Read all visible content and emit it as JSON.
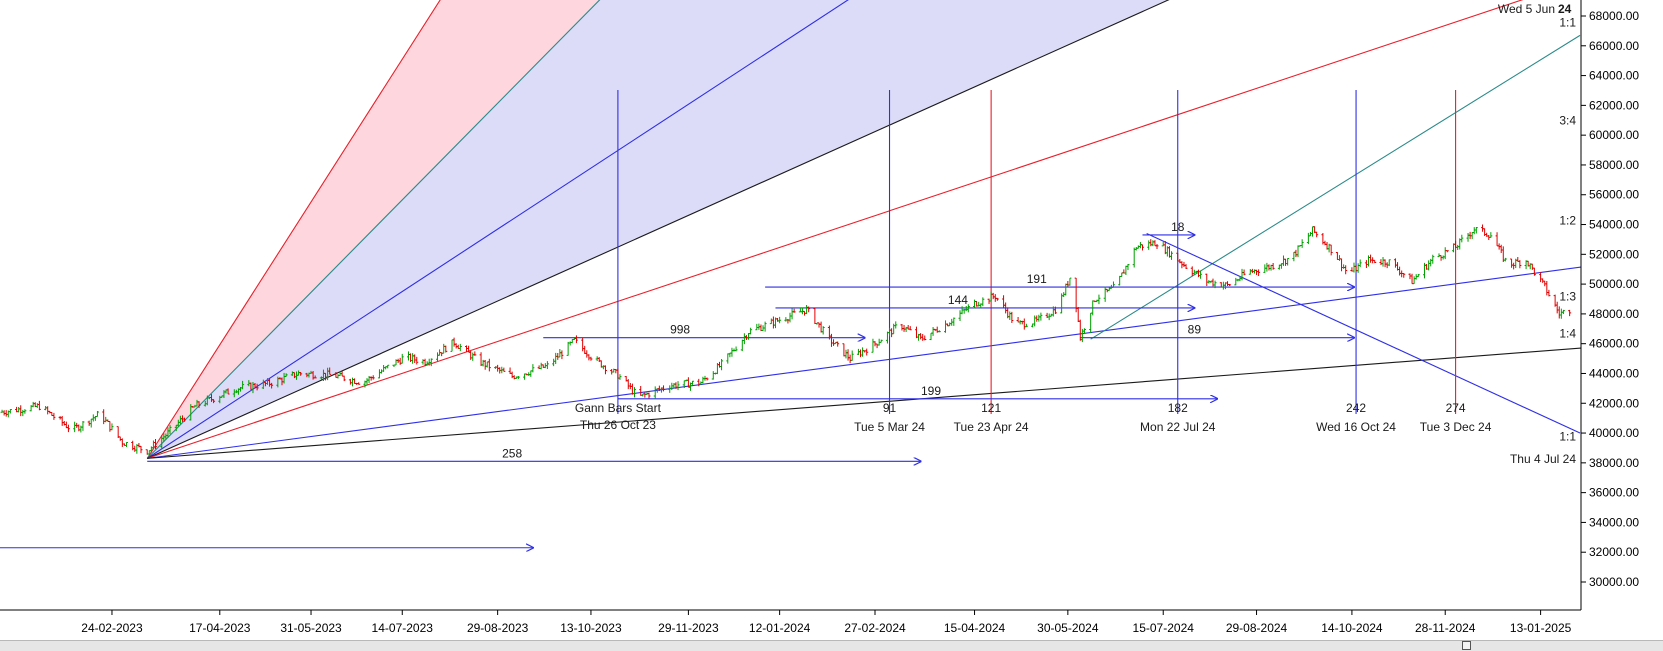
{
  "chart_data": {
    "type": "line",
    "series_style": "ohlc-price-bars",
    "y_axis_position": "right",
    "ylim": [
      29000,
      69000
    ],
    "x_range": [
      "2023-01-01",
      "2025-02-01"
    ],
    "y_ticks": [
      30000,
      32000,
      34000,
      36000,
      38000,
      40000,
      42000,
      44000,
      46000,
      48000,
      50000,
      52000,
      54000,
      56000,
      58000,
      60000,
      62000,
      64000,
      66000,
      68000
    ],
    "y_tick_labels": [
      "30000.00",
      "32000.00",
      "34000.00",
      "36000.00",
      "38000.00",
      "40000.00",
      "42000.00",
      "44000.00",
      "46000.00",
      "48000.00",
      "50000.00",
      "52000.00",
      "54000.00",
      "56000.00",
      "58000.00",
      "60000.00",
      "62000.00",
      "64000.00",
      "66000.00",
      "68000.00"
    ],
    "x_ticks": [
      "2023-02-24",
      "2023-04-17",
      "2023-05-31",
      "2023-07-14",
      "2023-08-29",
      "2023-10-13",
      "2023-11-29",
      "2024-01-12",
      "2024-02-27",
      "2024-04-15",
      "2024-05-30",
      "2024-07-15",
      "2024-08-29",
      "2024-10-14",
      "2024-11-28",
      "2025-01-13"
    ],
    "x_tick_labels": [
      "24-02-2023",
      "17-04-2023",
      "31-05-2023",
      "14-07-2023",
      "29-08-2023",
      "13-10-2023",
      "29-11-2023",
      "12-01-2024",
      "27-02-2024",
      "15-04-2024",
      "30-05-2024",
      "15-07-2024",
      "29-08-2024",
      "14-10-2024",
      "28-11-2024",
      "13-01-2025"
    ],
    "price_points": [
      [
        "2023-01-01",
        41400
      ],
      [
        "2023-01-20",
        41800
      ],
      [
        "2023-02-05",
        40200
      ],
      [
        "2023-02-18",
        41300
      ],
      [
        "2023-03-01",
        39400
      ],
      [
        "2023-03-13",
        38800
      ],
      [
        "2023-03-23",
        40000
      ],
      [
        "2023-04-05",
        41800
      ],
      [
        "2023-04-25",
        43000
      ],
      [
        "2023-05-10",
        43300
      ],
      [
        "2023-05-25",
        44000
      ],
      [
        "2023-06-10",
        43900
      ],
      [
        "2023-06-25",
        43400
      ],
      [
        "2023-07-15",
        45100
      ],
      [
        "2023-07-25",
        44800
      ],
      [
        "2023-08-08",
        46100
      ],
      [
        "2023-08-20",
        44800
      ],
      [
        "2023-09-05",
        43800
      ],
      [
        "2023-09-22",
        44500
      ],
      [
        "2023-10-05",
        46200
      ],
      [
        "2023-10-15",
        44900
      ],
      [
        "2023-10-26",
        43900
      ],
      [
        "2023-11-05",
        42400
      ],
      [
        "2023-11-20",
        43200
      ],
      [
        "2023-12-05",
        43400
      ],
      [
        "2023-12-15",
        44600
      ],
      [
        "2023-12-28",
        46800
      ],
      [
        "2024-01-10",
        47500
      ],
      [
        "2024-01-25",
        48300
      ],
      [
        "2024-02-05",
        46300
      ],
      [
        "2024-02-15",
        45000
      ],
      [
        "2024-02-27",
        46000
      ],
      [
        "2024-03-10",
        47300
      ],
      [
        "2024-03-20",
        46300
      ],
      [
        "2024-04-01",
        47300
      ],
      [
        "2024-04-15",
        48700
      ],
      [
        "2024-04-25",
        49200
      ],
      [
        "2024-05-05",
        47300
      ],
      [
        "2024-05-15",
        47500
      ],
      [
        "2024-05-25",
        48400
      ],
      [
        "2024-06-01",
        50800
      ],
      [
        "2024-06-05",
        46400
      ],
      [
        "2024-06-12",
        49000
      ],
      [
        "2024-06-22",
        49800
      ],
      [
        "2024-07-02",
        52500
      ],
      [
        "2024-07-12",
        52800
      ],
      [
        "2024-07-25",
        51300
      ],
      [
        "2024-08-05",
        50200
      ],
      [
        "2024-08-15",
        49900
      ],
      [
        "2024-08-25",
        50800
      ],
      [
        "2024-09-05",
        51200
      ],
      [
        "2024-09-15",
        51800
      ],
      [
        "2024-09-25",
        53600
      ],
      [
        "2024-10-05",
        52200
      ],
      [
        "2024-10-12",
        50700
      ],
      [
        "2024-10-22",
        51600
      ],
      [
        "2024-11-01",
        51500
      ],
      [
        "2024-11-12",
        50200
      ],
      [
        "2024-11-22",
        51700
      ],
      [
        "2024-12-03",
        52500
      ],
      [
        "2024-12-12",
        53700
      ],
      [
        "2024-12-20",
        53300
      ],
      [
        "2024-12-28",
        51300
      ],
      [
        "2025-01-06",
        51600
      ],
      [
        "2025-01-15",
        49800
      ],
      [
        "2025-01-22",
        48000
      ],
      [
        "2025-01-27",
        48300
      ]
    ],
    "gann_fan": {
      "origin": [
        "2023-03-13",
        38300
      ],
      "rays": [
        {
          "label": "",
          "color": "#e8202b",
          "through": [
            "2023-04-10",
            44400
          ]
        },
        {
          "label": "",
          "color": "#2a8a8a",
          "through": [
            "2023-04-10",
            42250
          ]
        },
        {
          "label": "1:1",
          "color": "#2f2fe6",
          "through": [
            "2023-04-10",
            40850
          ]
        },
        {
          "label": "3:4",
          "color": "#1a1a1a",
          "through": [
            "2023-04-10",
            40050
          ]
        },
        {
          "label": "1:2",
          "color": "#e8202b",
          "through": [
            "2023-04-10",
            39600
          ]
        },
        {
          "label": "1:3",
          "color": "#2f2fe6",
          "through": [
            "2023-04-10",
            38820
          ]
        },
        {
          "label": "1:4",
          "color": "#1a1a1a",
          "through": [
            "2023-04-10",
            38600
          ]
        }
      ],
      "shading": [
        {
          "between": [
            0,
            1
          ],
          "color": "#fdd7dd"
        },
        {
          "between": [
            1,
            3
          ],
          "color": "#dcdcf8"
        }
      ],
      "top_corner_labels": [
        "Wed 5 Jun",
        "24"
      ]
    },
    "other_lines": [
      {
        "color": "#2a8a8a",
        "from": [
          "2024-06-10",
          46300
        ],
        "to": [
          "2025-02-01",
          66700
        ]
      },
      {
        "color": "#2f2fe6",
        "from": [
          "2024-07-07",
          53400
        ],
        "to": [
          "2025-02-01",
          40000
        ]
      }
    ],
    "vertical_lines": [
      {
        "date": "2023-10-26",
        "color": "#2f2fe6",
        "count": "",
        "labels": [
          "Gann Bars Start",
          "Thu 26 Oct 23"
        ]
      },
      {
        "date": "2024-03-05",
        "color": "#2f2fe6",
        "count": "91",
        "labels": [
          "Tue 5 Mar 24"
        ]
      },
      {
        "date": "2024-04-23",
        "color": "#e8202b",
        "count": "121",
        "labels": [
          "Tue 23 Apr 24"
        ]
      },
      {
        "date": "2024-07-22",
        "color": "#2f2fe6",
        "count": "182",
        "labels": [
          "Mon 22 Jul 24"
        ]
      },
      {
        "date": "2024-10-16",
        "color": "#2f2fe6",
        "count": "242",
        "labels": [
          "Wed 16 Oct 24"
        ]
      },
      {
        "date": "2024-12-03",
        "color": "#e8202b",
        "count": "274",
        "labels": [
          "Tue 3 Dec 24"
        ]
      }
    ],
    "horizontal_arrows": [
      {
        "y": 38100,
        "from": "2023-03-13",
        "to": "2024-03-20",
        "label": "258",
        "label_at": "2023-09-05"
      },
      {
        "y": 32300,
        "from": "2023-01-01",
        "to": "2023-09-15",
        "label": "",
        "label_at": ""
      },
      {
        "y": 46400,
        "from": "2023-09-20",
        "to": "2024-02-22",
        "label": "998",
        "label_at": "2023-11-25"
      },
      {
        "y": 49800,
        "from": "2024-01-05",
        "to": "2024-10-15",
        "label": "191",
        "label_at": "2024-05-15"
      },
      {
        "y": 48400,
        "from": "2024-01-10",
        "to": "2024-07-30",
        "label": "144",
        "label_at": "2024-04-07"
      },
      {
        "y": 46400,
        "from": "2024-06-05",
        "to": "2024-10-15",
        "label": "89",
        "label_at": "2024-07-30"
      },
      {
        "y": 42300,
        "from": "2023-10-26",
        "to": "2024-08-10",
        "label": "199",
        "label_at": "2024-03-25"
      },
      {
        "y": 53300,
        "from": "2024-07-05",
        "to": "2024-07-30",
        "label": "18",
        "label_at": "2024-07-22"
      }
    ],
    "ray_end_labels": [
      {
        "text": "1:1",
        "x": "2025-02-01",
        "y": 67300
      },
      {
        "text": "3:4",
        "x": "2025-02-01",
        "y": 60700
      },
      {
        "text": "1:2",
        "x": "2025-02-01",
        "y": 54000
      },
      {
        "text": "1:3",
        "x": "2025-02-01",
        "y": 48900
      },
      {
        "text": "1:4",
        "x": "2025-02-01",
        "y": 46400
      },
      {
        "text": "1:1",
        "x": "2025-02-01",
        "y": 39500
      },
      {
        "text": "Thu 4 Jul 24",
        "x": "2025-02-01",
        "y": 38000
      }
    ],
    "colors": {
      "up": "#00a000",
      "down": "#e00000",
      "axis": "#000000"
    }
  }
}
